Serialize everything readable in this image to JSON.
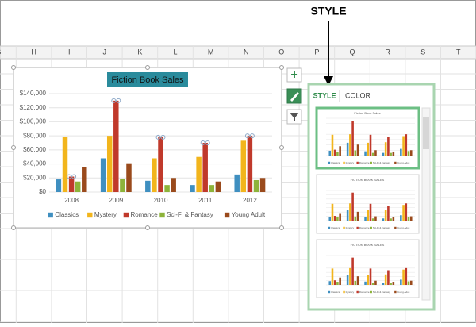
{
  "callout": "STYLE",
  "sheet": {
    "columns": [
      "G",
      "H",
      "I",
      "J",
      "K",
      "L",
      "M",
      "N",
      "O",
      "P",
      "Q",
      "R",
      "S",
      "T"
    ]
  },
  "chart_data": {
    "type": "bar",
    "title": "Fiction Book Sales",
    "categories": [
      "2008",
      "2009",
      "2010",
      "2011",
      "2012"
    ],
    "series": [
      {
        "name": "Classics",
        "color": "#3f8fc0",
        "values": [
          18000,
          48000,
          16000,
          10000,
          25000
        ]
      },
      {
        "name": "Mystery",
        "color": "#f2b51c",
        "values": [
          78000,
          80000,
          48000,
          50000,
          73000
        ]
      },
      {
        "name": "Romance",
        "color": "#c0392b",
        "values": [
          22000,
          130000,
          78000,
          70000,
          80000
        ]
      },
      {
        "name": "Sci-Fi & Fantasy",
        "color": "#8db33a",
        "values": [
          15000,
          19000,
          10000,
          10000,
          17000
        ]
      },
      {
        "name": "Young Adult",
        "color": "#9a4a1c",
        "values": [
          35000,
          41000,
          20000,
          15000,
          20000
        ]
      }
    ],
    "ylim": [
      0,
      140000
    ],
    "yticks": [
      {
        "value": 0,
        "label": "$0"
      },
      {
        "value": 20000,
        "label": "$20,000"
      },
      {
        "value": 40000,
        "label": "$40,000"
      },
      {
        "value": 60000,
        "label": "$60,000"
      },
      {
        "value": 80000,
        "label": "$80,000"
      },
      {
        "value": 100000,
        "label": "$100,000"
      },
      {
        "value": 120000,
        "label": "$120,000"
      },
      {
        "value": 140000,
        "label": "$140,000"
      }
    ],
    "legend": "bottom"
  },
  "style_pane": {
    "tabs": [
      "STYLE",
      "COLOR"
    ],
    "thumbnails": [
      "Fiction Book Sales",
      "FICTION BOOK SALES",
      "FICTION BOOK SALES"
    ]
  }
}
